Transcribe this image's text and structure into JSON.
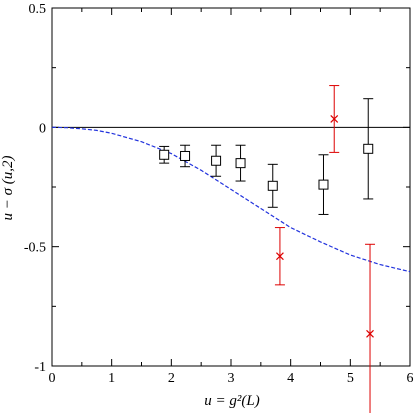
{
  "chart_data": {
    "type": "scatter",
    "title": "",
    "xlabel": "u = g²(L)",
    "ylabel": "u − σ (u,2)",
    "xlim": [
      0,
      6
    ],
    "ylim": [
      -1,
      0.5
    ],
    "x_ticks": [
      0,
      1,
      2,
      3,
      4,
      5,
      6
    ],
    "y_ticks": [
      -1,
      -0.5,
      0,
      0.5
    ],
    "x_tick_labels": [
      "0",
      "1",
      "2",
      "3",
      "4",
      "5",
      "6"
    ],
    "y_tick_labels": [
      "-1",
      "-0.5",
      "0",
      "0.5"
    ],
    "grid": false,
    "reference_line": {
      "y": 0,
      "color": "#000000"
    },
    "series": [
      {
        "marker": "square",
        "color": "#000000",
        "points": [
          {
            "x": 1.88,
            "y": -0.115,
            "yerr": 0.035
          },
          {
            "x": 2.23,
            "y": -0.12,
            "yerr": 0.045
          },
          {
            "x": 2.75,
            "y": -0.14,
            "yerr": 0.065
          },
          {
            "x": 3.16,
            "y": -0.15,
            "yerr": 0.075
          },
          {
            "x": 3.7,
            "y": -0.245,
            "yerr": 0.09
          },
          {
            "x": 4.55,
            "y": -0.24,
            "yerr": 0.125
          },
          {
            "x": 5.3,
            "y": -0.09,
            "yerr": 0.21
          }
        ]
      },
      {
        "marker": "x",
        "color": "#dd0000",
        "points": [
          {
            "x": 3.82,
            "y": -0.54,
            "yerr": 0.12
          },
          {
            "x": 4.73,
            "y": 0.035,
            "yerr": 0.14
          },
          {
            "x": 5.33,
            "y": -0.865,
            "yerr": 0.375
          }
        ]
      },
      {
        "type": "line",
        "style": "dashed",
        "color": "#2233dd",
        "x": [
          0,
          0.25,
          0.5,
          0.75,
          1,
          1.5,
          2,
          2.5,
          3,
          3.5,
          4,
          4.5,
          5,
          5.5,
          6
        ],
        "y": [
          0,
          -0.0015,
          -0.006,
          -0.013,
          -0.025,
          -0.06,
          -0.11,
          -0.18,
          -0.26,
          -0.34,
          -0.42,
          -0.48,
          -0.535,
          -0.575,
          -0.605
        ]
      }
    ]
  }
}
